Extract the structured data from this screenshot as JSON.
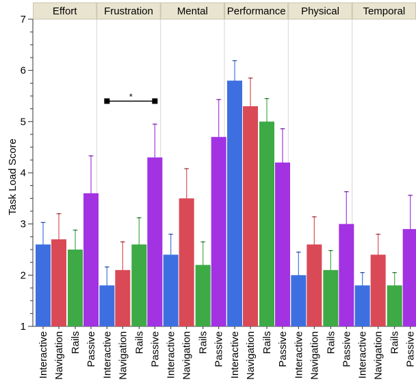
{
  "chart_data": {
    "type": "bar",
    "ylabel": "Task Load Score",
    "ylim": [
      1,
      7
    ],
    "yticks": [
      "1",
      "2",
      "3",
      "4",
      "5",
      "6",
      "7"
    ],
    "panels": [
      "Effort",
      "Frustration",
      "Mental",
      "Performance",
      "Physical",
      "Temporal"
    ],
    "categories": [
      "Interactive",
      "Navigation",
      "Rails",
      "Passive"
    ],
    "grid": false,
    "colors": {
      "Interactive": "#3d6fe0",
      "Navigation": "#d94a56",
      "Rails": "#3daa45",
      "Passive": "#a332e3"
    },
    "series": [
      {
        "panel": "Effort",
        "values": [
          2.6,
          2.7,
          2.5,
          3.6
        ],
        "err_lo": [
          2.15,
          2.2,
          2.12,
          2.85
        ],
        "err_hi": [
          3.03,
          3.2,
          2.88,
          4.33
        ]
      },
      {
        "panel": "Frustration",
        "values": [
          1.8,
          2.1,
          2.6,
          4.3
        ],
        "err_lo": [
          1.45,
          1.55,
          2.08,
          3.65
        ],
        "err_hi": [
          2.16,
          2.65,
          3.12,
          4.95
        ]
      },
      {
        "panel": "Mental",
        "values": [
          2.4,
          3.5,
          2.2,
          4.7
        ],
        "err_lo": [
          2.0,
          2.9,
          1.75,
          3.98
        ],
        "err_hi": [
          2.8,
          4.08,
          2.65,
          5.43
        ]
      },
      {
        "panel": "Performance",
        "values": [
          5.8,
          5.3,
          5.0,
          4.2
        ],
        "err_lo": [
          5.42,
          4.72,
          4.55,
          3.53
        ],
        "err_hi": [
          6.19,
          5.85,
          5.45,
          4.86
        ]
      },
      {
        "panel": "Physical",
        "values": [
          2.0,
          2.6,
          2.1,
          3.0
        ],
        "err_lo": [
          1.55,
          2.07,
          1.72,
          2.38
        ],
        "err_hi": [
          2.45,
          3.14,
          2.48,
          3.63
        ]
      },
      {
        "panel": "Temporal",
        "values": [
          1.8,
          2.4,
          1.8,
          2.9
        ],
        "err_lo": [
          1.55,
          2.0,
          1.55,
          2.25
        ],
        "err_hi": [
          2.05,
          2.8,
          2.05,
          3.56
        ]
      }
    ],
    "annotations": [
      {
        "panel": "Frustration",
        "from": "Interactive",
        "to": "Passive",
        "y": 5.4,
        "text": "*"
      }
    ]
  }
}
